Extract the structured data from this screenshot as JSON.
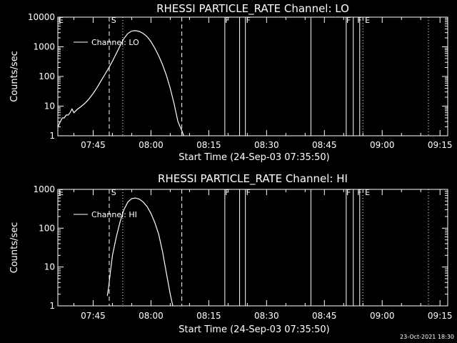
{
  "chart_data": [
    {
      "type": "line",
      "title": "RHESSI PARTICLE_RATE Channel: LO",
      "xlabel": "Start Time (24-Sep-03 07:35:50)",
      "ylabel": "Counts/sec",
      "yscale": "log",
      "ylim": [
        1,
        10000
      ],
      "xlim": [
        "07:35:50",
        "09:17:00"
      ],
      "x_ticks": [
        "07:45",
        "08:00",
        "08:15",
        "08:30",
        "08:45",
        "09:00",
        "09:15"
      ],
      "y_ticks": [
        "1",
        "10",
        "100",
        "1000",
        "10000"
      ],
      "legend": "top-left",
      "series": [
        {
          "name": "Channel: LO",
          "x": [
            "07:35:50",
            "07:36:30",
            "07:37:00",
            "07:37:30",
            "07:38:00",
            "07:38:30",
            "07:39:00",
            "07:39:30",
            "07:40:00",
            "07:41:00",
            "07:42:00",
            "07:43:00",
            "07:44:00",
            "07:45:00",
            "07:46:00",
            "07:47:00",
            "07:48:00",
            "07:49:00",
            "07:50:00",
            "07:51:00",
            "07:52:00",
            "07:53:00",
            "07:54:00",
            "07:55:00",
            "07:56:00",
            "07:57:00",
            "07:58:00",
            "07:59:00",
            "08:00:00",
            "08:01:00",
            "08:02:00",
            "08:03:00",
            "08:04:00",
            "08:05:00",
            "08:06:00",
            "08:07:00",
            "08:08:00",
            "08:08:30"
          ],
          "values": [
            2,
            3,
            4,
            4,
            5,
            5,
            6,
            8,
            6,
            8,
            10,
            13,
            18,
            27,
            42,
            70,
            115,
            190,
            330,
            600,
            1100,
            1900,
            2800,
            3400,
            3500,
            3300,
            2800,
            2200,
            1500,
            900,
            500,
            250,
            110,
            40,
            12,
            3,
            1.5,
            1
          ]
        }
      ],
      "markers": {
        "dashed": [
          "07:49:10",
          "08:08:00"
        ],
        "dotted": [
          "07:52:40",
          "08:55:00",
          "09:12:00"
        ],
        "solid": [
          "08:19:10",
          "08:23:00",
          "08:24:30",
          "08:41:30",
          "08:50:40",
          "08:52:30",
          "08:54:10"
        ],
        "flags": [
          {
            "label": "S",
            "t": "07:49:30"
          },
          {
            "label": "F",
            "t": "08:19:00"
          },
          {
            "label": "F",
            "t": "08:24:30"
          },
          {
            "label": "F",
            "t": "08:50:30"
          },
          {
            "label": "F",
            "t": "08:53:20"
          },
          {
            "label": "E",
            "t": "08:55:20"
          }
        ]
      }
    },
    {
      "type": "line",
      "title": "RHESSI PARTICLE_RATE Channel: HI",
      "xlabel": "Start Time (24-Sep-03 07:35:50)",
      "ylabel": "Counts/sec",
      "yscale": "log",
      "ylim": [
        1,
        1000
      ],
      "xlim": [
        "07:35:50",
        "09:17:00"
      ],
      "x_ticks": [
        "07:45",
        "08:00",
        "08:15",
        "08:30",
        "08:45",
        "09:00",
        "09:15"
      ],
      "y_ticks": [
        "1",
        "10",
        "100",
        "1000"
      ],
      "legend": "top-left",
      "series": [
        {
          "name": "Channel: HI",
          "x": [
            "07:48:40",
            "07:49:00",
            "07:49:30",
            "07:50:00",
            "07:51:00",
            "07:52:00",
            "07:53:00",
            "07:54:00",
            "07:55:00",
            "07:56:00",
            "07:57:00",
            "07:58:00",
            "07:59:00",
            "08:00:00",
            "08:01:00",
            "08:02:00",
            "08:03:00",
            "08:04:00",
            "08:05:00",
            "08:05:40"
          ],
          "values": [
            1.8,
            3,
            8,
            20,
            60,
            150,
            300,
            470,
            580,
            600,
            560,
            470,
            360,
            240,
            140,
            70,
            25,
            7,
            2,
            1
          ]
        }
      ],
      "markers": {
        "dashed": [
          "07:49:10",
          "08:08:00"
        ],
        "dotted": [
          "07:52:40",
          "08:55:00",
          "09:12:00"
        ],
        "solid": [
          "08:19:10",
          "08:23:00",
          "08:24:30",
          "08:41:30",
          "08:50:40",
          "08:52:30",
          "08:54:10"
        ],
        "flags": [
          {
            "label": "S",
            "t": "07:49:30"
          },
          {
            "label": "F",
            "t": "08:19:00"
          },
          {
            "label": "F",
            "t": "08:24:30"
          },
          {
            "label": "F",
            "t": "08:50:30"
          },
          {
            "label": "F",
            "t": "08:53:20"
          },
          {
            "label": "E",
            "t": "08:55:20"
          }
        ]
      }
    }
  ],
  "footer": {
    "timestamp": "23-Oct-2021 18:30"
  }
}
